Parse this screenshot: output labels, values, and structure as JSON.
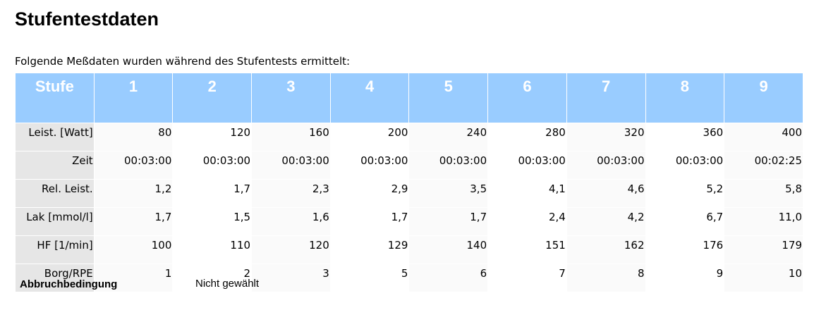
{
  "title": "Stufentestdaten",
  "intro": "Folgende Meßdaten wurden während des Stufentests ermittelt:",
  "colors": {
    "header_bg": "#99ccff",
    "label_bg": "#e6e6e6",
    "alt_cell_bg": "#fafafa"
  },
  "table": {
    "header_label": "Stufe",
    "stages": [
      "1",
      "2",
      "3",
      "4",
      "5",
      "6",
      "7",
      "8",
      "9"
    ],
    "rows": [
      {
        "label": "Leist. [Watt]",
        "values": [
          "80",
          "120",
          "160",
          "200",
          "240",
          "280",
          "320",
          "360",
          "400"
        ]
      },
      {
        "label": "Zeit",
        "values": [
          "00:03:00",
          "00:03:00",
          "00:03:00",
          "00:03:00",
          "00:03:00",
          "00:03:00",
          "00:03:00",
          "00:03:00",
          "00:02:25"
        ]
      },
      {
        "label": "Rel. Leist.",
        "values": [
          "1,2",
          "1,7",
          "2,3",
          "2,9",
          "3,5",
          "4,1",
          "4,6",
          "5,2",
          "5,8"
        ]
      },
      {
        "label": "Lak [mmol/l]",
        "values": [
          "1,7",
          "1,5",
          "1,6",
          "1,7",
          "1,7",
          "2,4",
          "4,2",
          "6,7",
          "11,0"
        ]
      },
      {
        "label": "HF [1/min]",
        "values": [
          "100",
          "110",
          "120",
          "129",
          "140",
          "151",
          "162",
          "176",
          "179"
        ]
      },
      {
        "label": "Borg/RPE",
        "values": [
          "1",
          "2",
          "3",
          "5",
          "6",
          "7",
          "8",
          "9",
          "10"
        ]
      }
    ]
  },
  "footer": {
    "label": "Abbruchbedingung",
    "value": "Nicht gewählt"
  }
}
